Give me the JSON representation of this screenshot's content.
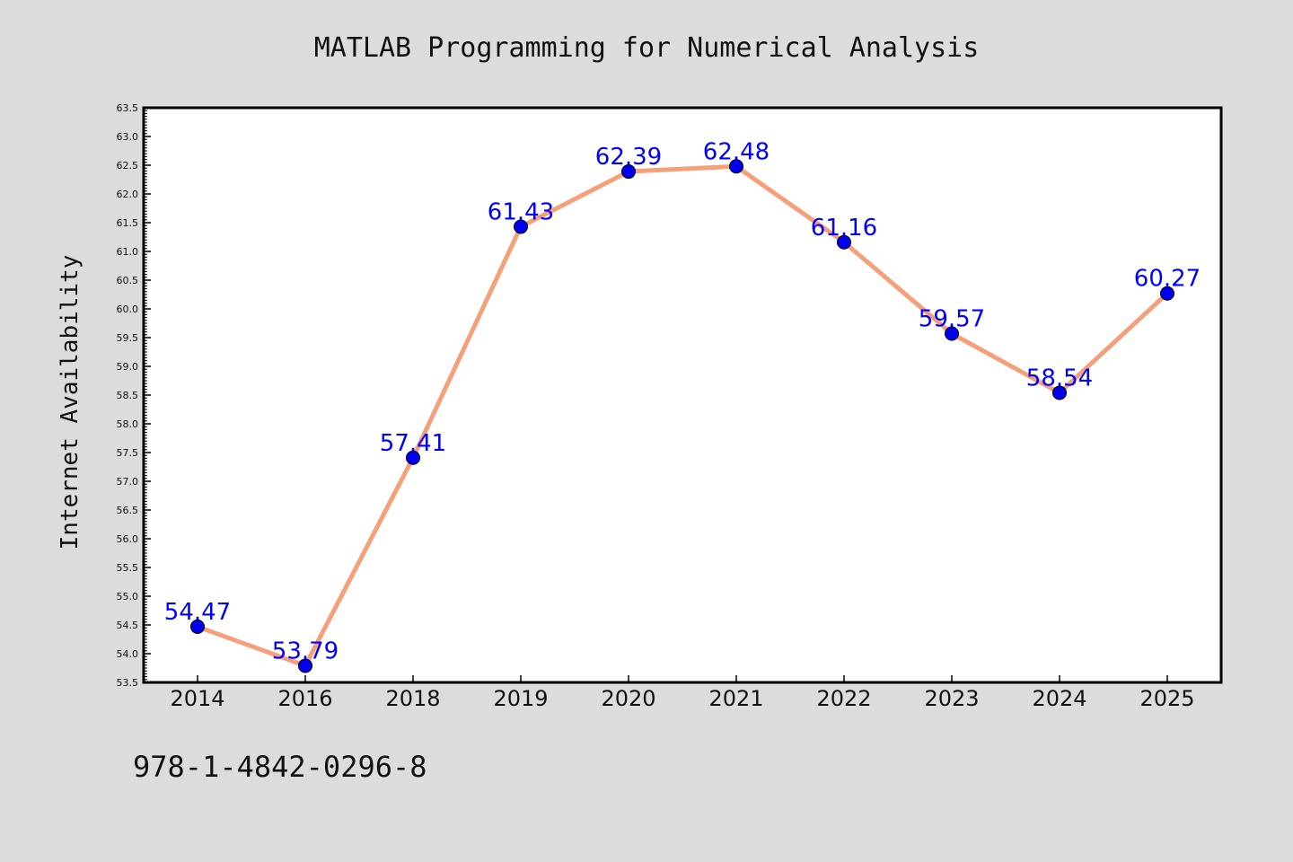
{
  "chart_data": {
    "type": "line",
    "title": "MATLAB Programming for Numerical Analysis",
    "xlabel": "",
    "ylabel": "Internet Availability",
    "categories": [
      "2014",
      "2016",
      "2018",
      "2019",
      "2020",
      "2021",
      "2022",
      "2023",
      "2024",
      "2025"
    ],
    "series": [
      {
        "values": [
          54.47,
          53.79,
          57.41,
          61.43,
          62.39,
          62.48,
          61.16,
          59.57,
          58.54,
          60.27
        ],
        "labels": [
          "54.47",
          "53.79",
          "57.41",
          "61.43",
          "62.39",
          "62.48",
          "61.16",
          "59.57",
          "58.54",
          "60.27"
        ],
        "line_color": "#f4a07a",
        "marker_color": "#0000ee",
        "label_color": "#0000ff"
      }
    ],
    "ylim": [
      53.5,
      63.5
    ],
    "yticks": [
      "53.5",
      "54.0",
      "54.5",
      "55.0",
      "55.5",
      "56.0",
      "56.5",
      "57.0",
      "57.5",
      "58.0",
      "58.5",
      "59.0",
      "59.5",
      "60.0",
      "60.5",
      "61.0",
      "61.5",
      "62.0",
      "62.5",
      "63.0",
      "63.5"
    ],
    "grid": false,
    "legend": "none"
  },
  "footer": {
    "isbn": "978-1-4842-0296-8"
  },
  "colors": {
    "background": "#dcdcdc",
    "plot_area": "#ffffff",
    "axis": "#000000"
  }
}
